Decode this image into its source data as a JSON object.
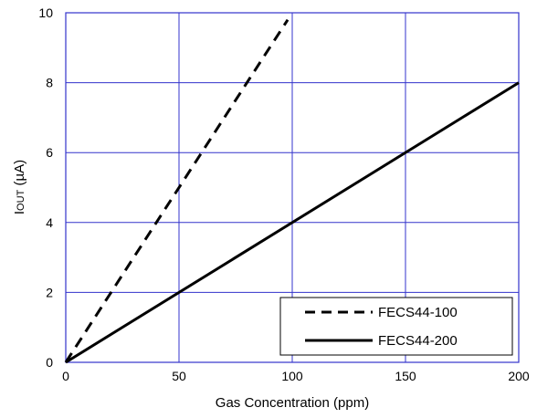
{
  "chart_data": {
    "type": "line",
    "xlabel": "Gas Concentration (ppm)",
    "ylabel_main": "I",
    "ylabel_sub": "OUT",
    "ylabel_unit": " (µA)",
    "xlim": [
      0,
      200
    ],
    "ylim": [
      0,
      10
    ],
    "x_ticks": [
      0,
      50,
      100,
      150,
      200
    ],
    "y_ticks": [
      0,
      2,
      4,
      6,
      8,
      10
    ],
    "grid": true,
    "grid_color": "#3333cc",
    "legend_position": "bottom-right",
    "series": [
      {
        "name": "FECS44-100",
        "style": "dashed",
        "color": "#000000",
        "x": [
          0,
          98
        ],
        "y": [
          0,
          9.8
        ]
      },
      {
        "name": "FECS44-200",
        "style": "solid",
        "color": "#000000",
        "x": [
          0,
          200
        ],
        "y": [
          0,
          8
        ]
      }
    ]
  }
}
